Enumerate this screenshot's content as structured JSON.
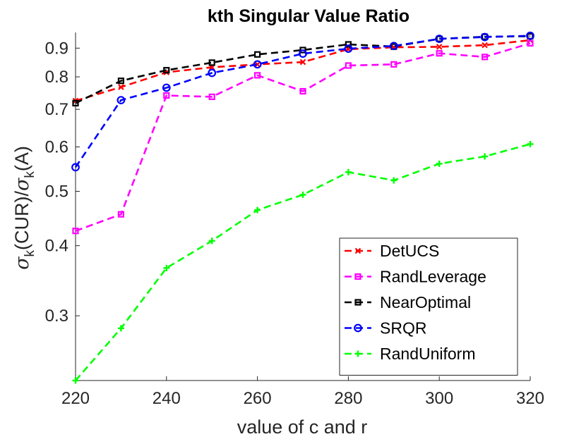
{
  "chart_data": {
    "type": "line",
    "title": "kth Singular Value Ratio",
    "xlabel": "value of c and r",
    "ylabel": {
      "sigma": "σ",
      "sub": "k",
      "mid": "(CUR)/",
      "tail": "(A)"
    },
    "yscale": "log",
    "xlim": [
      220,
      320
    ],
    "ylim": [
      0.23,
      0.96
    ],
    "xticks": [
      "220",
      "240",
      "260",
      "280",
      "300",
      "320"
    ],
    "yticks": [
      "0.3",
      "0.4",
      "0.5",
      "0.6",
      "0.7",
      "0.8",
      "0.9"
    ],
    "legend_position": "bottom-right",
    "x": [
      220,
      230,
      240,
      250,
      260,
      270,
      280,
      290,
      300,
      310,
      320
    ],
    "series": [
      {
        "name": "DetUCS",
        "color": "#ff0000",
        "marker": "x",
        "values": [
          0.725,
          0.767,
          0.815,
          0.832,
          0.842,
          0.85,
          0.896,
          0.903,
          0.905,
          0.911,
          0.93
        ]
      },
      {
        "name": "RandLeverage",
        "color": "#ff00ff",
        "marker": "square",
        "values": [
          0.425,
          0.455,
          0.741,
          0.737,
          0.805,
          0.754,
          0.838,
          0.842,
          0.881,
          0.868,
          0.918
        ]
      },
      {
        "name": "NearOptimal",
        "color": "#000000",
        "marker": "square",
        "values": [
          0.718,
          0.787,
          0.822,
          0.848,
          0.877,
          0.893,
          0.914,
          0.906,
          0.935,
          0.943,
          0.945
        ]
      },
      {
        "name": "SRQR",
        "color": "#0000ff",
        "marker": "circle",
        "values": [
          0.552,
          0.727,
          0.765,
          0.813,
          0.842,
          0.88,
          0.898,
          0.908,
          0.935,
          0.942,
          0.947
        ]
      },
      {
        "name": "RandUniform",
        "color": "#00ff00",
        "marker": "plus",
        "values": [
          0.23,
          0.285,
          0.365,
          0.408,
          0.463,
          0.493,
          0.541,
          0.523,
          0.56,
          0.577,
          0.607
        ]
      }
    ]
  }
}
